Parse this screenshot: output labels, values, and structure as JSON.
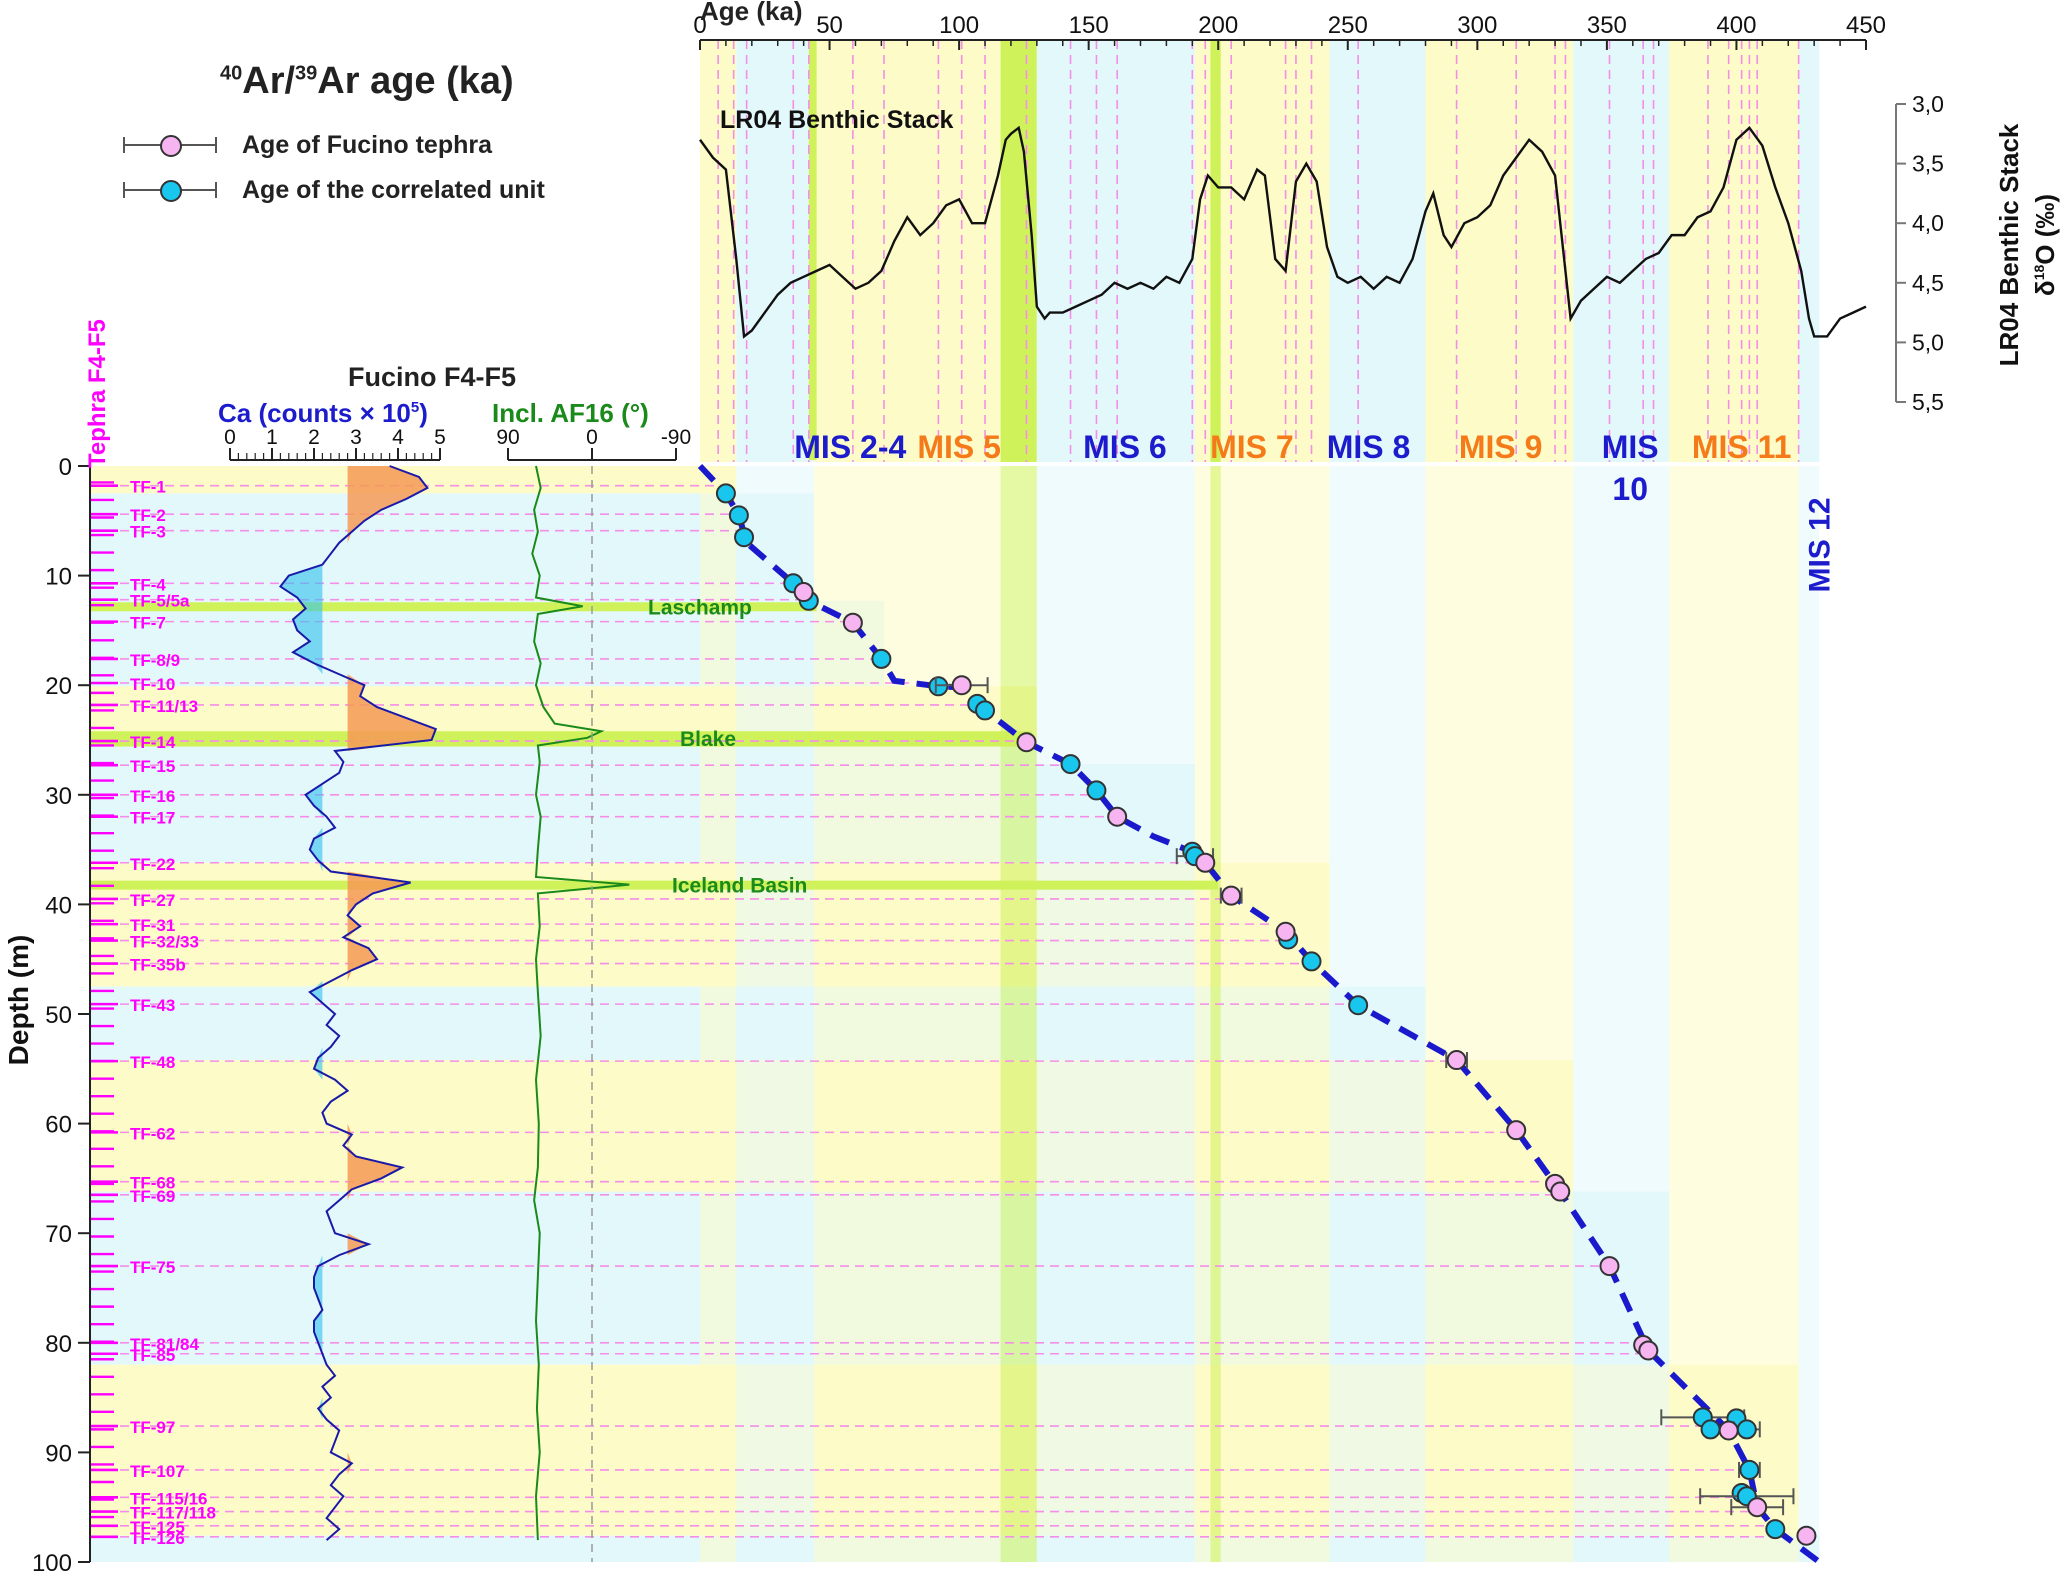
{
  "legend": {
    "title_pre": "40",
    "title_mid": "Ar/",
    "title_sup2": "39",
    "title_post": "Ar age (ka)",
    "fucino_label": "Age of Fucino tephra",
    "correlated_label": "Age of the correlated unit",
    "fucino_color": "#f6b4f0",
    "correlated_color": "#19c6ee"
  },
  "colors": {
    "yellow_band": "#fdfbc7",
    "blue_band": "#e3f8fb",
    "green_band": "#cff25a",
    "magenta": "#ff00ff",
    "dashed_pink": "#f48ee8",
    "ca_line": "#1a1aa8",
    "ca_blue_fill": "#2fc1ef",
    "ca_orange_fill": "#f59a55",
    "incl_line": "#1a8a1a",
    "mis_blue": "#1c1ccc",
    "mis_orange": "#f47a1a",
    "age_model": "#1a1acc"
  },
  "panel_titles": {
    "tephra_axis": "Tephra F4-F5",
    "core": "Fucino F4-F5",
    "ca_label": "Ca (counts  × 10",
    "ca_label_sup": "5",
    "ca_label_close": ")",
    "incl_label": "Incl. AF16 (°)",
    "depth_axis": "Depth (m)",
    "age_axis": "Age (ka)",
    "stack_title": "LR04 Benthic Stack",
    "d18o_axis_1": "LR04 Benthic Stack",
    "d18o_axis_2": "δ",
    "d18o_axis_sup": "18",
    "d18o_axis_3": "O (‰)"
  },
  "axes": {
    "age_ticks": [
      "0",
      "50",
      "100",
      "150",
      "200",
      "250",
      "300",
      "350",
      "400",
      "450"
    ],
    "depth_ticks": [
      "0",
      "10",
      "20",
      "30",
      "40",
      "50",
      "60",
      "70",
      "80",
      "90",
      "100"
    ],
    "ca_ticks": [
      "0",
      "1",
      "2",
      "3",
      "4",
      "5"
    ],
    "incl_ticks": [
      "90",
      "0",
      "-90"
    ],
    "d18o_ticks": [
      "3,0",
      "3,5",
      "4,0",
      "4,5",
      "5,0",
      "5,5"
    ]
  },
  "mis_labels": [
    {
      "text": "MIS 2-4",
      "color": "blue",
      "age": 58
    },
    {
      "text": "MIS 5",
      "color": "orange",
      "age": 100
    },
    {
      "text": "MIS 6",
      "color": "blue",
      "age": 164
    },
    {
      "text": "MIS 7",
      "color": "orange",
      "age": 213
    },
    {
      "text": "MIS 8",
      "color": "blue",
      "age": 258
    },
    {
      "text": "MIS 9",
      "color": "orange",
      "age": 309
    },
    {
      "text": "MIS",
      "color": "blue",
      "age": 359
    },
    {
      "text": "10",
      "color": "blue",
      "age": 359
    },
    {
      "text": "MIS 11",
      "color": "orange",
      "age": 402
    },
    {
      "text": "MIS 12",
      "color": "blue",
      "age": 432
    }
  ],
  "events": [
    {
      "label": "Laschamp",
      "depth": 12.8
    },
    {
      "label": "Blake",
      "depth": 24.8
    },
    {
      "label": "Iceland Basin",
      "depth": 38.2
    }
  ],
  "chart_data": {
    "type": "scatter",
    "title": "Fucino F4-F5",
    "xlabel": "Age (ka)",
    "ylabel": "Depth (m)",
    "xlim": [
      0,
      450
    ],
    "ylim": [
      0,
      100
    ],
    "tephra": [
      {
        "name": "TF-1",
        "depth": 1.8
      },
      {
        "name": "TF-2",
        "depth": 4.4
      },
      {
        "name": "TF-3",
        "depth": 5.9
      },
      {
        "name": "TF-4",
        "depth": 10.7
      },
      {
        "name": "TF-5/5a",
        "depth": 12.2
      },
      {
        "name": "TF-7",
        "depth": 14.2
      },
      {
        "name": "TF-8/9",
        "depth": 17.6
      },
      {
        "name": "TF-10",
        "depth": 19.8
      },
      {
        "name": "TF-11/13",
        "depth": 21.8
      },
      {
        "name": "TF-14",
        "depth": 25.1
      },
      {
        "name": "TF-15",
        "depth": 27.3
      },
      {
        "name": "TF-16",
        "depth": 30.0
      },
      {
        "name": "TF-17",
        "depth": 32.0
      },
      {
        "name": "TF-22",
        "depth": 36.2
      },
      {
        "name": "TF-27",
        "depth": 39.5
      },
      {
        "name": "TF-31",
        "depth": 41.8
      },
      {
        "name": "TF-32/33",
        "depth": 43.3
      },
      {
        "name": "TF-35b",
        "depth": 45.4
      },
      {
        "name": "TF-43",
        "depth": 49.1
      },
      {
        "name": "TF-48",
        "depth": 54.3
      },
      {
        "name": "TF-62",
        "depth": 60.8
      },
      {
        "name": "TF-68",
        "depth": 65.3
      },
      {
        "name": "TF-69",
        "depth": 66.5
      },
      {
        "name": "TF-75",
        "depth": 73.0
      },
      {
        "name": "TF-81/84",
        "depth": 80.0
      },
      {
        "name": "TF-85",
        "depth": 81.0
      },
      {
        "name": "TF-97",
        "depth": 87.6
      },
      {
        "name": "TF-107",
        "depth": 91.6
      },
      {
        "name": "TF-115/16",
        "depth": 94.1
      },
      {
        "name": "TF-117/118",
        "depth": 95.4
      },
      {
        "name": "TF-125",
        "depth": 96.7
      },
      {
        "name": "TF-126",
        "depth": 97.7
      }
    ],
    "series": [
      {
        "name": "Age of Fucino tephra",
        "points": [
          {
            "age": 40,
            "depth": 11.5
          },
          {
            "age": 59,
            "depth": 14.3
          },
          {
            "age": 101,
            "depth": 20.0,
            "err": 10
          },
          {
            "age": 126,
            "depth": 25.2
          },
          {
            "age": 161,
            "depth": 32.0
          },
          {
            "age": 195,
            "depth": 36.2
          },
          {
            "age": 205,
            "depth": 39.2,
            "err": 4
          },
          {
            "age": 226,
            "depth": 42.5
          },
          {
            "age": 292,
            "depth": 54.2,
            "err": 4
          },
          {
            "age": 315,
            "depth": 60.6
          },
          {
            "age": 330,
            "depth": 65.5
          },
          {
            "age": 332,
            "depth": 66.2
          },
          {
            "age": 351,
            "depth": 73.0
          },
          {
            "age": 364,
            "depth": 80.2
          },
          {
            "age": 366,
            "depth": 80.7
          },
          {
            "age": 397,
            "depth": 88.0
          },
          {
            "age": 408,
            "depth": 95.0,
            "err": 10
          },
          {
            "age": 427,
            "depth": 97.6
          }
        ]
      },
      {
        "name": "Age of the correlated unit",
        "points": [
          {
            "age": 10,
            "depth": 2.5
          },
          {
            "age": 15,
            "depth": 4.5
          },
          {
            "age": 17,
            "depth": 6.5
          },
          {
            "age": 36,
            "depth": 10.7
          },
          {
            "age": 42,
            "depth": 12.3
          },
          {
            "age": 70,
            "depth": 17.6
          },
          {
            "age": 92,
            "depth": 20.1
          },
          {
            "age": 107,
            "depth": 21.7
          },
          {
            "age": 110,
            "depth": 22.3
          },
          {
            "age": 143,
            "depth": 27.2
          },
          {
            "age": 153,
            "depth": 29.6
          },
          {
            "age": 190,
            "depth": 35.2
          },
          {
            "age": 191,
            "depth": 35.6,
            "err": 7
          },
          {
            "age": 227,
            "depth": 43.2
          },
          {
            "age": 236,
            "depth": 45.2
          },
          {
            "age": 254,
            "depth": 49.2
          },
          {
            "age": 387,
            "depth": 86.8,
            "err": 16
          },
          {
            "age": 390,
            "depth": 87.9
          },
          {
            "age": 400,
            "depth": 86.9
          },
          {
            "age": 404,
            "depth": 87.9,
            "err": 5
          },
          {
            "age": 405,
            "depth": 91.6,
            "err": 4
          },
          {
            "age": 402,
            "depth": 93.7
          },
          {
            "age": 404,
            "depth": 94.0,
            "err": 18
          },
          {
            "age": 415,
            "depth": 97.0
          }
        ]
      }
    ],
    "age_model": [
      [
        0,
        0
      ],
      [
        10,
        2.5
      ],
      [
        15,
        4.5
      ],
      [
        18,
        7
      ],
      [
        36,
        10.7
      ],
      [
        42,
        12.3
      ],
      [
        59,
        14.3
      ],
      [
        70,
        17.6
      ],
      [
        75,
        19.6
      ],
      [
        92,
        20.1
      ],
      [
        101,
        20.2
      ],
      [
        110,
        22.3
      ],
      [
        126,
        25.2
      ],
      [
        143,
        27.2
      ],
      [
        153,
        29.6
      ],
      [
        161,
        32.0
      ],
      [
        175,
        33.8
      ],
      [
        190,
        35.2
      ],
      [
        195,
        36.2
      ],
      [
        205,
        39.2
      ],
      [
        226,
        42.5
      ],
      [
        236,
        45.2
      ],
      [
        254,
        49.2
      ],
      [
        292,
        54.2
      ],
      [
        315,
        60.6
      ],
      [
        332,
        66.2
      ],
      [
        351,
        73.0
      ],
      [
        366,
        80.7
      ],
      [
        397,
        88.0
      ],
      [
        405,
        91.6
      ],
      [
        408,
        95.0
      ],
      [
        415,
        97.0
      ],
      [
        432,
        100
      ]
    ],
    "lr04": {
      "xlabel": "Age (ka)",
      "ylabel": "δ18O (‰)",
      "ylim": [
        3.0,
        5.5
      ],
      "y_reversed": true,
      "ages": [
        0,
        5,
        10,
        14,
        17,
        20,
        25,
        30,
        35,
        40,
        45,
        50,
        55,
        60,
        65,
        70,
        75,
        80,
        85,
        90,
        95,
        100,
        105,
        110,
        115,
        118,
        120,
        123,
        125,
        128,
        130,
        133,
        135,
        140,
        145,
        150,
        155,
        160,
        165,
        170,
        175,
        180,
        185,
        190,
        193,
        196,
        200,
        205,
        210,
        215,
        218,
        222,
        226,
        230,
        234,
        238,
        242,
        246,
        250,
        255,
        260,
        265,
        270,
        275,
        280,
        283,
        287,
        290,
        295,
        300,
        305,
        310,
        315,
        320,
        325,
        330,
        333,
        336,
        340,
        345,
        350,
        355,
        360,
        365,
        370,
        375,
        380,
        385,
        390,
        395,
        400,
        405,
        410,
        415,
        420,
        425,
        428,
        430,
        435,
        440,
        445,
        450
      ],
      "values": [
        3.3,
        3.45,
        3.55,
        4.3,
        4.95,
        4.9,
        4.75,
        4.6,
        4.5,
        4.45,
        4.4,
        4.35,
        4.45,
        4.55,
        4.5,
        4.4,
        4.15,
        3.95,
        4.1,
        4.0,
        3.85,
        3.8,
        4.0,
        4.0,
        3.6,
        3.3,
        3.25,
        3.2,
        3.4,
        4.1,
        4.7,
        4.8,
        4.75,
        4.75,
        4.7,
        4.65,
        4.6,
        4.5,
        4.55,
        4.5,
        4.55,
        4.45,
        4.5,
        4.3,
        3.8,
        3.6,
        3.7,
        3.7,
        3.8,
        3.55,
        3.6,
        4.3,
        4.4,
        3.65,
        3.5,
        3.65,
        4.2,
        4.45,
        4.5,
        4.45,
        4.55,
        4.45,
        4.5,
        4.3,
        3.9,
        3.75,
        4.1,
        4.2,
        4.0,
        3.95,
        3.85,
        3.6,
        3.45,
        3.3,
        3.4,
        3.6,
        4.2,
        4.8,
        4.65,
        4.55,
        4.45,
        4.5,
        4.4,
        4.3,
        4.25,
        4.1,
        4.1,
        3.95,
        3.9,
        3.7,
        3.3,
        3.2,
        3.35,
        3.7,
        4.0,
        4.4,
        4.8,
        4.95,
        4.95,
        4.8,
        4.75,
        4.7
      ]
    },
    "ca_counts_x1e5": {
      "xlim": [
        0,
        5
      ],
      "depths": [
        0,
        1,
        2,
        3,
        4,
        5,
        6,
        7,
        8,
        9,
        10,
        11,
        12,
        13,
        14,
        15,
        16,
        17,
        18,
        19,
        20,
        21,
        22,
        23,
        24,
        25,
        26,
        27,
        28,
        29,
        30,
        31,
        32,
        33,
        34,
        35,
        36,
        37,
        38,
        39,
        40,
        41,
        42,
        43,
        44,
        45,
        46,
        47,
        48,
        49,
        50,
        51,
        52,
        53,
        54,
        55,
        56,
        57,
        58,
        59,
        60,
        61,
        62,
        63,
        64,
        65,
        66,
        67,
        68,
        69,
        70,
        71,
        72,
        73,
        74,
        75,
        76,
        77,
        78,
        79,
        80,
        81,
        82,
        83,
        84,
        85,
        86,
        87,
        88,
        89,
        90,
        91,
        92,
        93,
        94,
        95,
        96,
        97,
        98
      ],
      "values": [
        3.8,
        4.5,
        4.7,
        4.2,
        3.6,
        3.2,
        2.9,
        2.6,
        2.4,
        2.2,
        1.4,
        1.2,
        1.6,
        1.8,
        1.5,
        1.6,
        1.9,
        1.5,
        2.0,
        2.6,
        3.2,
        3.1,
        3.5,
        4.2,
        4.9,
        4.8,
        2.5,
        2.7,
        2.6,
        2.2,
        1.8,
        2.0,
        2.3,
        2.5,
        2.0,
        1.9,
        2.1,
        2.4,
        4.3,
        3.4,
        3.0,
        2.8,
        3.1,
        2.7,
        3.3,
        3.5,
        2.9,
        2.4,
        1.9,
        2.2,
        2.5,
        2.3,
        2.6,
        2.4,
        2.1,
        2.0,
        2.5,
        2.8,
        2.4,
        2.2,
        2.3,
        2.9,
        2.7,
        3.0,
        4.1,
        3.6,
        2.9,
        2.6,
        2.3,
        2.4,
        2.5,
        3.3,
        2.6,
        2.1,
        2.0,
        2.0,
        2.1,
        2.2,
        2.0,
        2.0,
        2.1,
        2.2,
        2.3,
        2.5,
        2.2,
        2.4,
        2.1,
        2.3,
        2.6,
        2.5,
        2.4,
        2.9,
        2.6,
        2.4,
        2.7,
        2.5,
        2.3,
        2.6,
        2.3
      ]
    },
    "incl_af16_deg": {
      "xlim": [
        90,
        -90
      ],
      "depths": [
        0,
        2,
        4,
        6,
        8,
        10,
        12,
        12.8,
        13.5,
        16,
        18,
        20,
        22,
        23.5,
        24.2,
        24.8,
        25.5,
        27,
        30,
        32,
        35,
        37.5,
        38.2,
        39,
        42,
        45,
        48,
        52,
        56,
        60,
        64,
        67,
        70,
        74,
        78,
        82,
        86,
        90,
        94,
        98
      ],
      "values": [
        60,
        55,
        62,
        58,
        64,
        56,
        60,
        10,
        58,
        62,
        55,
        60,
        52,
        40,
        -10,
        5,
        58,
        56,
        60,
        55,
        58,
        60,
        -40,
        58,
        56,
        60,
        58,
        55,
        60,
        57,
        58,
        62,
        56,
        58,
        60,
        57,
        59,
        56,
        60,
        58
      ]
    }
  }
}
